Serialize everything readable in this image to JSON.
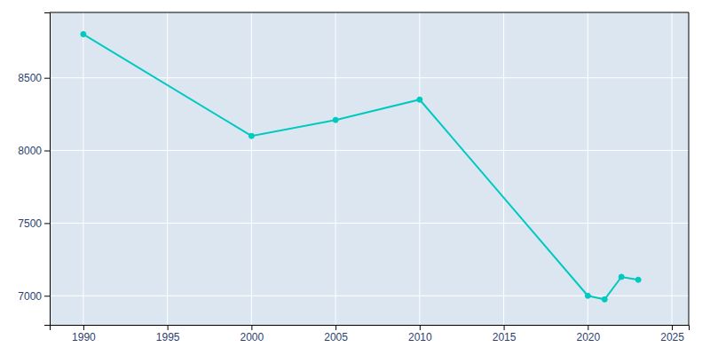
{
  "chart_data": {
    "type": "line",
    "x": [
      1990,
      2000,
      2005,
      2010,
      2020,
      2021,
      2022,
      2023
    ],
    "values": [
      8800,
      8100,
      8210,
      8350,
      7000,
      6975,
      7130,
      7110
    ],
    "color": "#00C9C0",
    "marker": "circle",
    "xlim": [
      1988,
      2026
    ],
    "ylim": [
      6800,
      8950
    ],
    "xticks": [
      1990,
      1995,
      2000,
      2005,
      2010,
      2015,
      2020,
      2025
    ],
    "yticks": [
      7000,
      7500,
      8000,
      8500
    ],
    "grid": true
  }
}
